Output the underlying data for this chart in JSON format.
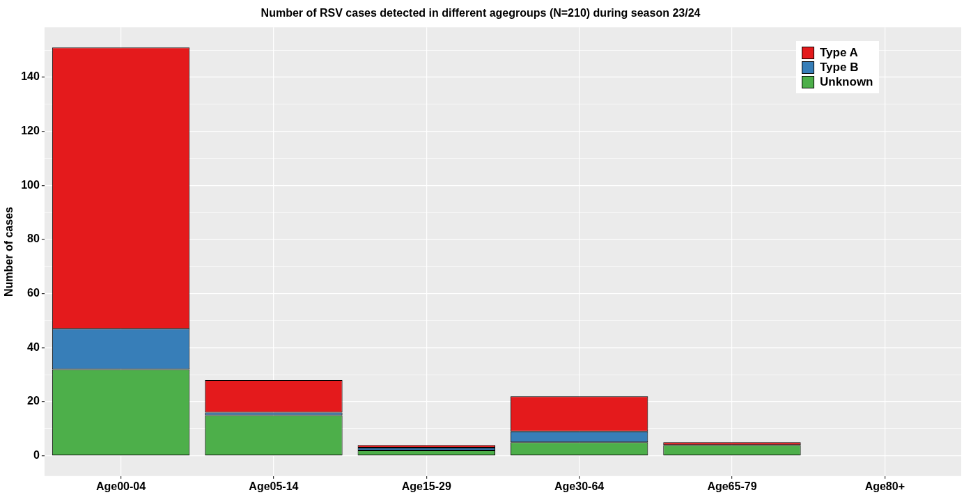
{
  "chart_data": {
    "type": "bar",
    "title": "Number of RSV cases detected in different agegroups (N=210) during season 23/24",
    "ylabel": "Number of cases",
    "categories": [
      "Age00-04",
      "Age05-14",
      "Age15-29",
      "Age30-64",
      "Age65-79",
      "Age80+"
    ],
    "series": [
      {
        "name": "Unknown",
        "color": "#4daf4a",
        "values": [
          32,
          15,
          2,
          5,
          4,
          0
        ]
      },
      {
        "name": "Type B",
        "color": "#377eb8",
        "values": [
          15,
          1,
          1,
          4,
          0,
          0
        ]
      },
      {
        "name": "Type A",
        "color": "#e41a1c",
        "values": [
          104,
          12,
          1,
          13,
          1,
          0
        ]
      }
    ],
    "stacked": true,
    "ylim": [
      -7.5,
      158.5
    ],
    "yticks": [
      0,
      {
        "value": 10,
        "label": null
      },
      20,
      {
        "value": 30,
        "label": null
      },
      40,
      {
        "value": 50,
        "label": null
      },
      60,
      {
        "value": 70,
        "label": null
      },
      80,
      {
        "value": 90,
        "label": null
      },
      100,
      {
        "value": 110,
        "label": null
      },
      120,
      {
        "value": 130,
        "label": null
      },
      140,
      {
        "value": 150,
        "label": null
      }
    ],
    "grid": true,
    "legend": "top right"
  }
}
